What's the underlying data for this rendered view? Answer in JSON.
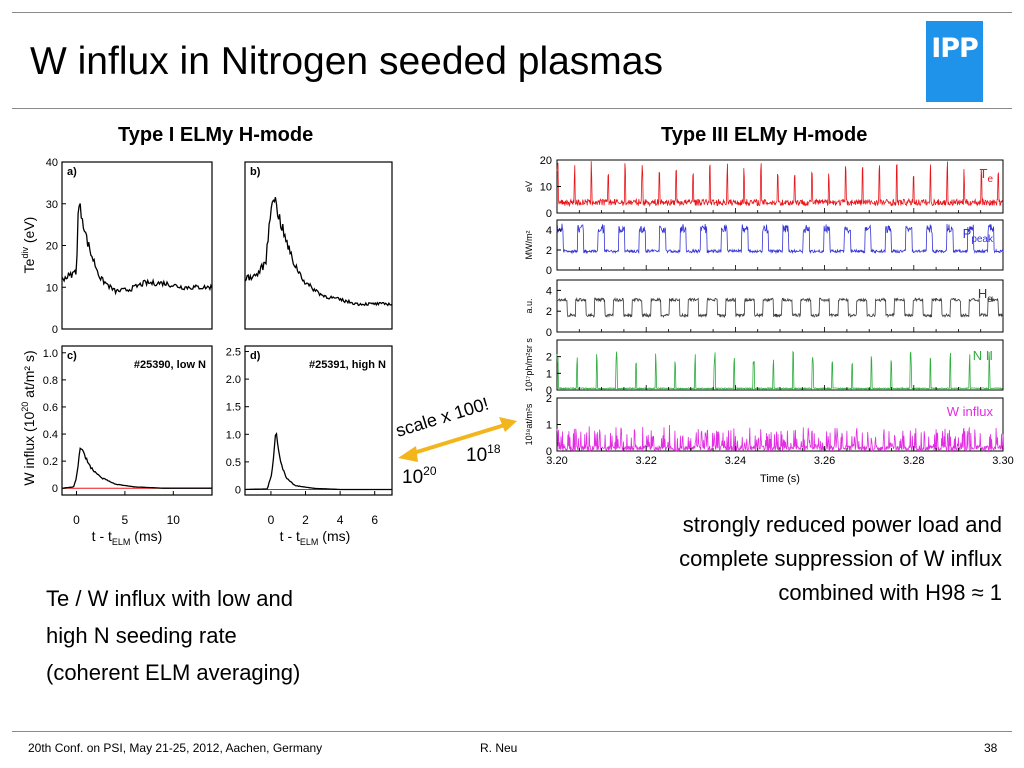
{
  "slide": {
    "title": "W influx in Nitrogen seeded plasmas",
    "logo_text": "IPP",
    "left_title": "Type I ELMy H-mode",
    "right_title": "Type III ELMy H-mode",
    "left_caption": [
      "Te / W influx with low and",
      "high N seeding rate",
      "(coherent ELM averaging)"
    ],
    "right_caption": [
      "strongly reduced power load and",
      "complete suppression of W influx",
      "combined with H98 ≈ 1"
    ],
    "scale_annotation": "scale x 100!",
    "arrow_left_base": "10",
    "arrow_left_exp": "20",
    "arrow_right_base": "10",
    "arrow_right_exp": "18",
    "footer_conf": "20th Conf. on  PSI, May 21-25, 2012, Aachen, Germany",
    "footer_author": "R. Neu",
    "footer_page": "38"
  },
  "chart_data": [
    {
      "type": "scatter",
      "id": "a",
      "panel_label": "a)",
      "y_ticks": [
        "0",
        "10",
        "20",
        "30",
        "40"
      ],
      "ylim": [
        0,
        40
      ],
      "x_ticks": [],
      "xlim": [
        -1.5,
        14
      ],
      "ylabel": "Te",
      "ylabel_sup": "div",
      "ylabel_tail": " (eV)",
      "series": [
        {
          "values": "scatter cloud around mean"
        },
        {
          "values": "black mean"
        }
      ],
      "mean_profile": [
        [
          -1.5,
          12
        ],
        [
          -0.5,
          13
        ],
        [
          0,
          14
        ],
        [
          0.2,
          30
        ],
        [
          0.6,
          27
        ],
        [
          1,
          22
        ],
        [
          1.5,
          18
        ],
        [
          2.5,
          12
        ],
        [
          4,
          9
        ],
        [
          5.5,
          9.5
        ],
        [
          7,
          11
        ],
        [
          9,
          11
        ],
        [
          11,
          10
        ],
        [
          12.5,
          10
        ],
        [
          14,
          10
        ]
      ]
    },
    {
      "type": "scatter",
      "id": "b",
      "panel_label": "b)",
      "y_ticks": [],
      "ylim": [
        0,
        40
      ],
      "x_ticks": [],
      "xlim": [
        -1.5,
        7
      ],
      "mean_profile": [
        [
          -1.5,
          12
        ],
        [
          -0.8,
          13
        ],
        [
          -0.3,
          16
        ],
        [
          0.1,
          33
        ],
        [
          0.4,
          28
        ],
        [
          0.8,
          22
        ],
        [
          1.3,
          16
        ],
        [
          2,
          11
        ],
        [
          3,
          8
        ],
        [
          4,
          7
        ],
        [
          5,
          6
        ],
        [
          6,
          6
        ],
        [
          7,
          6
        ]
      ]
    },
    {
      "type": "scatter",
      "id": "c",
      "panel_label": "c)",
      "annotation": "#25390, low  N",
      "y_ticks": [
        "0",
        "0.2",
        "0.4",
        "0.6",
        "0.8",
        "1.0"
      ],
      "ylim": [
        -0.05,
        1.05
      ],
      "x_ticks": [
        "0",
        "5",
        "10"
      ],
      "xlim": [
        -1.5,
        14
      ],
      "xlabel": "t - t",
      "xlabel_sub": "ELM",
      "xlabel_tail": "   (ms)",
      "ylabel": "W influx (10",
      "ylabel_sup": "20",
      "ylabel_tail": " at/m² s)",
      "mean_profile": [
        [
          -1.5,
          0
        ],
        [
          -0.3,
          0.01
        ],
        [
          0,
          0.08
        ],
        [
          0.4,
          0.3
        ],
        [
          0.8,
          0.25
        ],
        [
          1.5,
          0.15
        ],
        [
          2.5,
          0.08
        ],
        [
          4,
          0.03
        ],
        [
          6,
          0.01
        ],
        [
          9,
          0
        ],
        [
          14,
          0
        ]
      ]
    },
    {
      "type": "scatter",
      "id": "d",
      "panel_label": "d)",
      "annotation": "#25391, high  N",
      "y_ticks": [
        "0",
        "0.5",
        "1.0",
        "1.5",
        "2.0",
        "2.5"
      ],
      "ylim": [
        -0.1,
        2.6
      ],
      "x_ticks": [
        "0",
        "2",
        "4",
        "6"
      ],
      "xlim": [
        -1.5,
        7
      ],
      "xlabel": "t - t",
      "xlabel_sub": "ELM",
      "xlabel_tail": "   (ms)",
      "mean_profile": [
        [
          -1.5,
          0
        ],
        [
          -0.2,
          0.01
        ],
        [
          0.05,
          0.3
        ],
        [
          0.3,
          1.05
        ],
        [
          0.55,
          0.5
        ],
        [
          0.9,
          0.2
        ],
        [
          1.4,
          0.07
        ],
        [
          2.5,
          0.02
        ],
        [
          4,
          0
        ],
        [
          7,
          0
        ]
      ]
    },
    {
      "type": "line",
      "id": "te3",
      "xlim": [
        3.2,
        3.3
      ],
      "ylim": [
        0,
        20
      ],
      "y_ticks": [
        "0",
        "10",
        "20"
      ],
      "ylabel": "eV",
      "series": [
        {
          "name": "T",
          "name_sub": "e",
          "color": "#e8161b",
          "base": 4,
          "amp": 15,
          "spike_period": 0.0038,
          "noise": 2.5
        }
      ]
    },
    {
      "type": "line",
      "id": "ppeak",
      "xlim": [
        3.2,
        3.3
      ],
      "ylim": [
        0,
        5
      ],
      "y_ticks": [
        "0",
        "2",
        "4"
      ],
      "ylabel": "MW/m²",
      "series": [
        {
          "name": "P",
          "name_sub": "peak",
          "color": "#3434d4",
          "base": 1.5,
          "amp": 2.5,
          "spike_period": 0.0046,
          "noise": 0.3
        }
      ]
    },
    {
      "type": "line",
      "id": "halpha",
      "xlim": [
        3.2,
        3.3
      ],
      "ylim": [
        0,
        5
      ],
      "y_ticks": [
        "0",
        "2",
        "4"
      ],
      "ylabel": "a.u.",
      "series": [
        {
          "name": "H",
          "name_sub": "α",
          "color": "#3a3a3a",
          "base": 1.6,
          "amp": 1.5,
          "spike_period": 0.0042,
          "noise": 0.3
        }
      ]
    },
    {
      "type": "line",
      "id": "nii",
      "xlim": [
        3.2,
        3.3
      ],
      "ylim": [
        0,
        3
      ],
      "y_ticks": [
        "0",
        "1",
        "2"
      ],
      "ylabel": "10¹⁷ph/m²sr s",
      "series": [
        {
          "name": "N II",
          "color": "#2fae3f",
          "base": 0.1,
          "amp": 2.2,
          "spike_period": 0.0044,
          "noise": 0.06
        }
      ]
    },
    {
      "type": "line",
      "id": "winflux",
      "xlim": [
        3.2,
        3.3
      ],
      "ylim": [
        0,
        2
      ],
      "y_ticks": [
        "0",
        "1",
        "2"
      ],
      "ylabel": "10¹⁸at/m²s",
      "x_ticks": [
        "3.20",
        "3.22",
        "3.24",
        "3.26",
        "3.28",
        "3.30"
      ],
      "xlabel": "Time (s)",
      "series": [
        {
          "name": "W influx",
          "color": "#e22ee2",
          "base": 0.1,
          "amp": 0.8,
          "spike_period": 0.0012,
          "noise": 0.2
        }
      ]
    }
  ]
}
